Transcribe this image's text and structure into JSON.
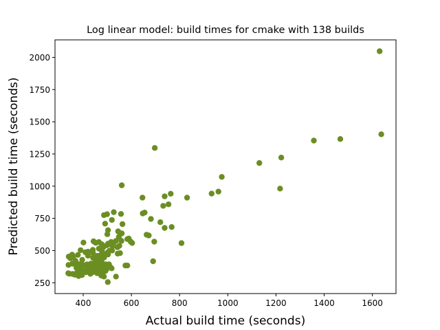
{
  "chart_data": {
    "type": "scatter",
    "title": "Log linear model: build times for cmake with 138 builds",
    "xlabel": "Actual build time (seconds)",
    "ylabel": "Predicted build time (seconds)",
    "xlim": [
      283,
      1698
    ],
    "ylim": [
      166,
      2136
    ],
    "xticks": [
      400,
      600,
      800,
      1000,
      1200,
      1400,
      1600
    ],
    "yticks": [
      250,
      500,
      750,
      1000,
      1250,
      1500,
      1750,
      2000
    ],
    "grid": false,
    "legend": "none",
    "marker_color": "#6b8e23",
    "points": [
      [
        1630,
        2048
      ],
      [
        1637,
        1403
      ],
      [
        1467,
        1366
      ],
      [
        1357,
        1354
      ],
      [
        1222,
        1222
      ],
      [
        1131,
        1180
      ],
      [
        1217,
        981
      ],
      [
        975,
        1072
      ],
      [
        961,
        958
      ],
      [
        933,
        942
      ],
      [
        831,
        911
      ],
      [
        763,
        941
      ],
      [
        738,
        921
      ],
      [
        754,
        859
      ],
      [
        732,
        847
      ],
      [
        697,
        1297
      ],
      [
        560,
        1007
      ],
      [
        646,
        911
      ],
      [
        655,
        795
      ],
      [
        647,
        788
      ],
      [
        681,
        745
      ],
      [
        720,
        720
      ],
      [
        767,
        683
      ],
      [
        738,
        676
      ],
      [
        663,
        623
      ],
      [
        672,
        617
      ],
      [
        695,
        569
      ],
      [
        808,
        558
      ],
      [
        690,
        417
      ],
      [
        557,
        784
      ],
      [
        527,
        798
      ],
      [
        486,
        775
      ],
      [
        499,
        782
      ],
      [
        563,
        705
      ],
      [
        491,
        709
      ],
      [
        519,
        738
      ],
      [
        545,
        649
      ],
      [
        560,
        633
      ],
      [
        548,
        606
      ],
      [
        503,
        658
      ],
      [
        500,
        627
      ],
      [
        589,
        593
      ],
      [
        597,
        569
      ],
      [
        603,
        559
      ],
      [
        583,
        589
      ],
      [
        559,
        575
      ],
      [
        536,
        575
      ],
      [
        527,
        561
      ],
      [
        516,
        567
      ],
      [
        503,
        553
      ],
      [
        550,
        537
      ],
      [
        542,
        526
      ],
      [
        521,
        534
      ],
      [
        543,
        476
      ],
      [
        498,
        541
      ],
      [
        477,
        549
      ],
      [
        465,
        566
      ],
      [
        443,
        572
      ],
      [
        452,
        560
      ],
      [
        401,
        562
      ],
      [
        483,
        524
      ],
      [
        465,
        515
      ],
      [
        440,
        505
      ],
      [
        441,
        480
      ],
      [
        420,
        491
      ],
      [
        409,
        487
      ],
      [
        389,
        503
      ],
      [
        378,
        466
      ],
      [
        358,
        449
      ],
      [
        354,
        468
      ],
      [
        340,
        453
      ],
      [
        347,
        440
      ],
      [
        368,
        420
      ],
      [
        396,
        428
      ],
      [
        420,
        460
      ],
      [
        441,
        443
      ],
      [
        455,
        432
      ],
      [
        470,
        460
      ],
      [
        478,
        492
      ],
      [
        490,
        472
      ],
      [
        508,
        498
      ],
      [
        503,
        470
      ],
      [
        487,
        447
      ],
      [
        476,
        423
      ],
      [
        462,
        414
      ],
      [
        448,
        405
      ],
      [
        432,
        398
      ],
      [
        416,
        393
      ],
      [
        400,
        387
      ],
      [
        383,
        394
      ],
      [
        371,
        385
      ],
      [
        339,
        388
      ],
      [
        355,
        398
      ],
      [
        389,
        372
      ],
      [
        372,
        365
      ],
      [
        418,
        372
      ],
      [
        431,
        379
      ],
      [
        447,
        381
      ],
      [
        464,
        386
      ],
      [
        478,
        397
      ],
      [
        493,
        393
      ],
      [
        507,
        393
      ],
      [
        470,
        377
      ],
      [
        455,
        364
      ],
      [
        440,
        357
      ],
      [
        422,
        351
      ],
      [
        404,
        344
      ],
      [
        387,
        338
      ],
      [
        373,
        325
      ],
      [
        357,
        318
      ],
      [
        338,
        324
      ],
      [
        343,
        320
      ],
      [
        366,
        312
      ],
      [
        381,
        302
      ],
      [
        395,
        310
      ],
      [
        412,
        332
      ],
      [
        430,
        319
      ],
      [
        448,
        350
      ],
      [
        465,
        337
      ],
      [
        483,
        357
      ],
      [
        498,
        360
      ],
      [
        513,
        371
      ],
      [
        518,
        362
      ],
      [
        493,
        342
      ],
      [
        482,
        329
      ],
      [
        458,
        324
      ],
      [
        475,
        306
      ],
      [
        486,
        298
      ],
      [
        438,
        331
      ],
      [
        381,
        316
      ],
      [
        502,
        255
      ],
      [
        536,
        298
      ],
      [
        575,
        384
      ],
      [
        583,
        384
      ],
      [
        553,
        480
      ],
      [
        501,
        484
      ],
      [
        460,
        459
      ],
      [
        520,
        500
      ]
    ]
  }
}
